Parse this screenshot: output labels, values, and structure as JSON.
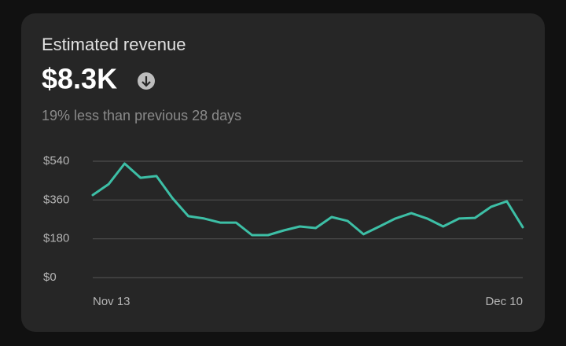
{
  "card": {
    "title": "Estimated revenue",
    "value": "$8.3K",
    "comparison": "19% less than previous 28 days"
  },
  "chart_data": {
    "type": "line",
    "categories": [
      "Nov 13",
      null,
      null,
      null,
      null,
      null,
      null,
      null,
      null,
      null,
      null,
      null,
      null,
      null,
      null,
      null,
      null,
      null,
      null,
      null,
      null,
      null,
      null,
      null,
      null,
      null,
      null,
      "Dec 10"
    ],
    "values": [
      383,
      434,
      529,
      463,
      471,
      369,
      285,
      274,
      255,
      255,
      197,
      197,
      219,
      237,
      230,
      281,
      263,
      201,
      237,
      274,
      299,
      274,
      237,
      274,
      277,
      328,
      354,
      234
    ],
    "color": "#3dbfa6",
    "ylim": [
      0,
      540
    ],
    "yticks": [
      {
        "value": 0,
        "label": "$0"
      },
      {
        "value": 180,
        "label": "$180"
      },
      {
        "value": 360,
        "label": "$360"
      },
      {
        "value": 540,
        "label": "$540"
      }
    ],
    "grid": true
  }
}
